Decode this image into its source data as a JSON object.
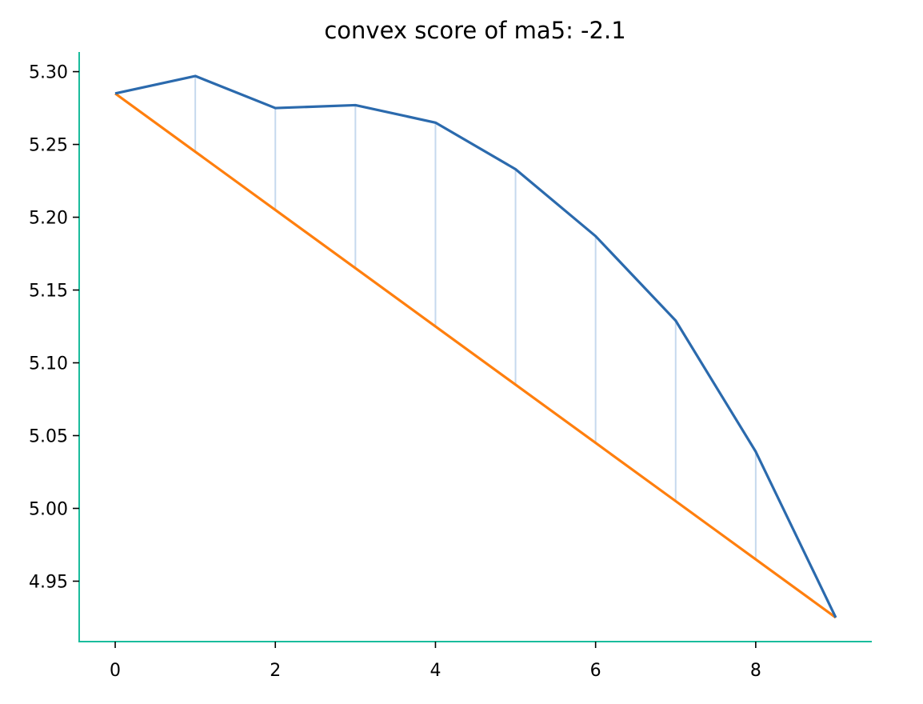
{
  "chart_data": {
    "type": "line",
    "title": "convex score of ma5: -2.1",
    "xlabel": "",
    "ylabel": "",
    "x": [
      0,
      1,
      2,
      3,
      4,
      5,
      6,
      7,
      8,
      9
    ],
    "series": [
      {
        "values": [
          5.285,
          5.297,
          5.275,
          5.277,
          5.265,
          5.233,
          5.187,
          5.129,
          5.039,
          4.925
        ],
        "color": "#2b6aad"
      },
      {
        "values": [
          5.285,
          5.245,
          5.205,
          5.165,
          5.125,
          5.085,
          5.045,
          5.005,
          4.965,
          4.925
        ],
        "color": "#ff7f0e"
      }
    ],
    "connectors": {
      "color": "#c6d9ee",
      "between": "series"
    },
    "xlim": [
      -0.45,
      9.45
    ],
    "ylim": [
      4.9085,
      5.3135
    ],
    "xticks": [
      0,
      2,
      4,
      6,
      8
    ],
    "xtick_labels": [
      "0",
      "2",
      "4",
      "6",
      "8"
    ],
    "yticks": [
      4.95,
      5.0,
      5.05,
      5.1,
      5.15,
      5.2,
      5.25,
      5.3
    ],
    "ytick_labels": [
      "4.95",
      "5.00",
      "5.05",
      "5.10",
      "5.15",
      "5.20",
      "5.25",
      "5.30"
    ],
    "spine_color": "#1abc9c",
    "grid": false,
    "legend": "none"
  }
}
